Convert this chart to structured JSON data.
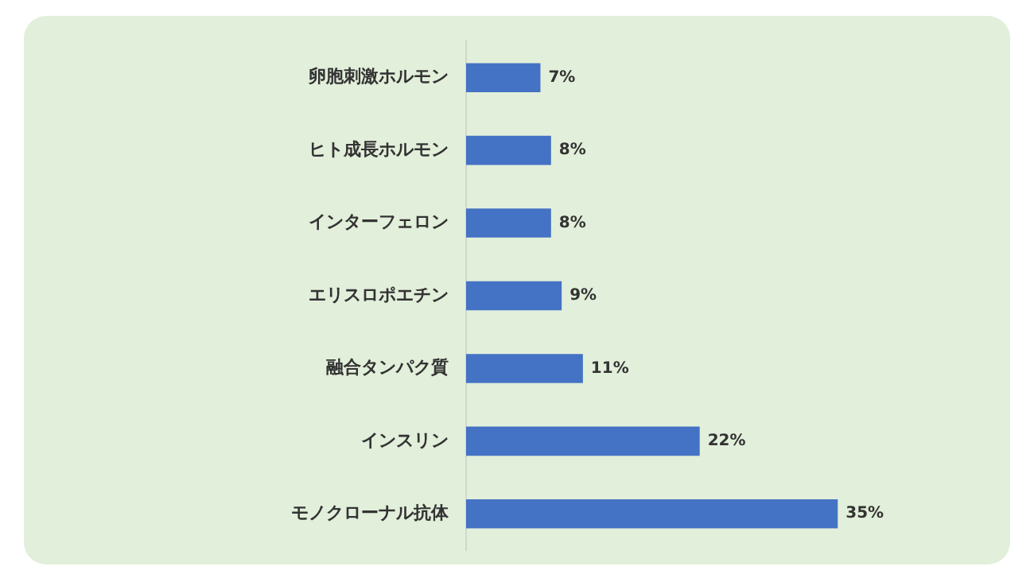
{
  "chart_data": {
    "type": "bar",
    "orientation": "horizontal",
    "categories": [
      "卵胞刺激ホルモン",
      "ヒト成長ホルモン",
      "インターフェロン",
      "エリスロポエチン",
      "融合タンパク質",
      "インスリン",
      "モノクローナル抗体"
    ],
    "values": [
      7,
      8,
      8,
      9,
      11,
      22,
      35
    ],
    "value_labels": [
      "7%",
      "8%",
      "8%",
      "9%",
      "11%",
      "22%",
      "35%"
    ],
    "color": "#4472c4",
    "legend": false,
    "tick_labels": "y"
  }
}
